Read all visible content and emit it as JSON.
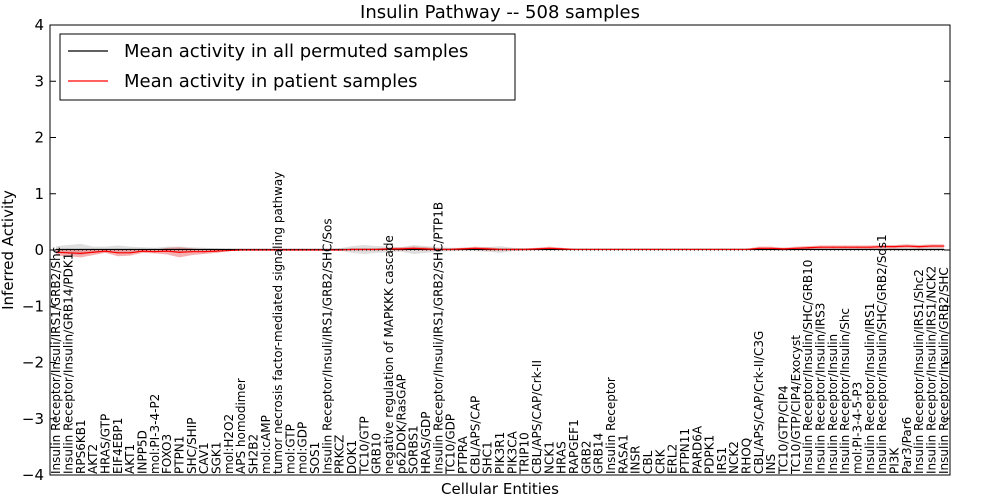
{
  "chart_data": {
    "type": "line",
    "title": "Insulin Pathway -- 508 samples",
    "xlabel": "Cellular Entities",
    "ylabel": "Inferred Activity",
    "ylim": [
      -4,
      4
    ],
    "yticks": [
      -4,
      -3,
      -2,
      -1,
      0,
      1,
      2,
      3,
      4
    ],
    "ytick_labels": [
      "−4",
      "−3",
      "−2",
      "−1",
      "0",
      "1",
      "2",
      "3",
      "4"
    ],
    "legend_position": "top-left",
    "reference_line": {
      "value": 0,
      "style": "dotted"
    },
    "categories": [
      "Insulin Receptor/Insuli/IRS1/GRB2/Shc",
      "Insulin Receptor/Insulin/GRB14/PDK1",
      "RPS6KB1",
      "AKT2",
      "HRAS/GTP",
      "EIF4EBP1",
      "AKT1",
      "INPP5D",
      "mol:PI-3-4-P2",
      "FOXO3",
      "PTPN1",
      "SHC/SHIP",
      "CAV1",
      "SGK1",
      "mol:H2O2",
      "APS homodimer",
      "SH2B2",
      "mol:cAMP",
      "tumor necrosis factor-mediated signaling pathway",
      "mol:GTP",
      "mol:GDP",
      "SOS1",
      "Insulin Receptor/Insuli/IRS1/GRB2/SHC/Sos",
      "PRKCZ",
      "DOK1",
      "TC10/GTP",
      "GRB10",
      "negative regulation of MAPKKK cascade",
      "p62DOK/RasGAP",
      "SORBS1",
      "HRAS/GDP",
      "Insulin Receptor/Insuli/IRS1/GRB2/SHC/PTP1B",
      "TC10/GDP",
      "PTPRA",
      "CBL/APS/CAP",
      "SHC1",
      "PIK3R1",
      "PIK3CA",
      "TRIP10",
      "CBL/APS/CAP/Crk-II",
      "NCK1",
      "HRAS",
      "RAPGEF1",
      "GRB2",
      "GRB14",
      "Insulin Receptor",
      "RASA1",
      "INSR",
      "CBL",
      "CRK",
      "ERL2",
      "PTPN11",
      "PARD6A",
      "PDPK1",
      "IRS1",
      "NCK2",
      "RHOQ",
      "CBL/APS/CAP/Crk-II/C3G",
      "INS",
      "TC10/GTP/CIP4",
      "TC10/GTP/CIP4/Exocyst",
      "Insulin Receptor/Insulin/SHC/GRB10",
      "Insulin Receptor/Insulin/IRS3",
      "Insulin Receptor/Insulin",
      "Insulin Receptor/Insulin/Shc",
      "mol:PI-3-4-5-P3",
      "Insulin Receptor/Insulin/IRS1",
      "Insulin Receptor/Insulin/SHC/GRB2/Sos1",
      "PI3K",
      "Par3/Par6",
      "Insulin Receptor/Insulin/IRS1/Shc2",
      "Insulin Receptor/Insulin/IRS1/NCK2",
      "Insulin Receptor/Insulin/GRB2/SHC"
    ],
    "series": [
      {
        "name": "Mean activity in all permuted samples",
        "color": "#000000",
        "values": [
          0.01,
          0.01,
          0.01,
          0.01,
          0.01,
          0.01,
          0.01,
          0.01,
          0.01,
          0.01,
          0.01,
          0.01,
          0.01,
          0.01,
          0.01,
          0.01,
          0.01,
          0.01,
          0.01,
          0.01,
          0.01,
          0.01,
          0.01,
          0.01,
          0.01,
          0.01,
          0.01,
          0.01,
          0.01,
          0.01,
          0.01,
          0.01,
          0.01,
          0.01,
          0.01,
          0.01,
          0.01,
          0.01,
          0.01,
          0.01,
          0.01,
          0.01,
          0.01,
          0.01,
          0.01,
          0.01,
          0.01,
          0.01,
          0.01,
          0.01,
          0.01,
          0.01,
          0.01,
          0.01,
          0.01,
          0.01,
          0.01,
          0.01,
          0.01,
          0.01,
          0.01,
          0.01,
          0.01,
          0.01,
          0.01,
          0.01,
          0.01,
          0.01,
          0.01,
          0.01,
          0.01,
          0.01,
          0.01
        ],
        "spread": [
          0.06,
          0.08,
          0.1,
          0.05,
          0.05,
          0.07,
          0.05,
          0.04,
          0.03,
          0.05,
          0.05,
          0.04,
          0.03,
          0.02,
          0.01,
          0.01,
          0.01,
          0.01,
          0.01,
          0.01,
          0.01,
          0.01,
          0.01,
          0.02,
          0.06,
          0.08,
          0.06,
          0.05,
          0.04,
          0.08,
          0.06,
          0.04,
          0.03,
          0.03,
          0.03,
          0.04,
          0.06,
          0.03,
          0.02,
          0.02,
          0.02,
          0.02,
          0.02,
          0.02,
          0.02,
          0.02,
          0.02,
          0.02,
          0.02,
          0.02,
          0.02,
          0.02,
          0.02,
          0.02,
          0.02,
          0.02,
          0.02,
          0.02,
          0.02,
          0.03,
          0.02,
          0.02,
          0.02,
          0.02,
          0.02,
          0.02,
          0.02,
          0.02,
          0.03,
          0.03,
          0.03,
          0.03,
          0.03
        ]
      },
      {
        "name": "Mean activity in patient samples",
        "color": "#ff0000",
        "values": [
          -0.04,
          -0.05,
          -0.06,
          -0.04,
          -0.02,
          -0.05,
          -0.05,
          -0.02,
          -0.03,
          -0.02,
          -0.04,
          -0.03,
          -0.03,
          -0.02,
          -0.01,
          0.0,
          0.0,
          0.0,
          0.0,
          0.0,
          0.0,
          0.0,
          0.0,
          0.0,
          0.01,
          0.01,
          0.01,
          0.02,
          0.02,
          0.03,
          0.02,
          0.01,
          0.01,
          0.02,
          0.03,
          0.02,
          0.01,
          0.01,
          0.01,
          0.02,
          0.03,
          0.02,
          0.01,
          0.01,
          0.01,
          0.01,
          0.01,
          0.01,
          0.01,
          0.01,
          0.01,
          0.01,
          0.01,
          0.01,
          0.01,
          0.01,
          0.01,
          0.03,
          0.03,
          0.02,
          0.03,
          0.04,
          0.05,
          0.05,
          0.05,
          0.05,
          0.05,
          0.06,
          0.06,
          0.07,
          0.06,
          0.07,
          0.07
        ],
        "spread": [
          0.06,
          0.06,
          0.07,
          0.05,
          0.03,
          0.06,
          0.05,
          0.03,
          0.03,
          0.06,
          0.09,
          0.06,
          0.04,
          0.03,
          0.01,
          0.01,
          0.01,
          0.01,
          0.01,
          0.01,
          0.01,
          0.01,
          0.01,
          0.01,
          0.02,
          0.02,
          0.02,
          0.02,
          0.03,
          0.03,
          0.03,
          0.02,
          0.02,
          0.02,
          0.03,
          0.03,
          0.02,
          0.02,
          0.02,
          0.02,
          0.03,
          0.02,
          0.01,
          0.01,
          0.01,
          0.01,
          0.01,
          0.01,
          0.01,
          0.01,
          0.01,
          0.01,
          0.01,
          0.01,
          0.01,
          0.01,
          0.01,
          0.03,
          0.03,
          0.02,
          0.03,
          0.03,
          0.03,
          0.03,
          0.03,
          0.03,
          0.03,
          0.03,
          0.03,
          0.03,
          0.03,
          0.03,
          0.03
        ]
      }
    ]
  }
}
